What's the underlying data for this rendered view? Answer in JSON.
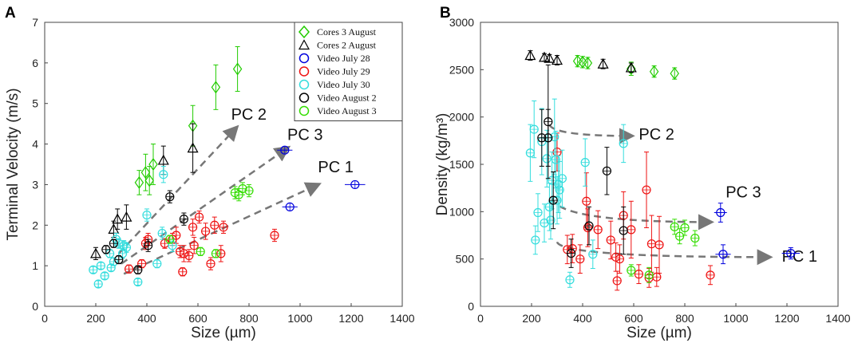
{
  "chart_data": [
    {
      "panel": "A",
      "type": "scatter",
      "xlabel": "Size (µm)",
      "ylabel": "Terminal Velocity (m/s)",
      "xlim": [
        0,
        1400
      ],
      "ylim": [
        0,
        7
      ],
      "xticks": [
        "0",
        "200",
        "400",
        "600",
        "800",
        "1000",
        "1200",
        "1400"
      ],
      "yticks": [
        "0",
        "1",
        "2",
        "3",
        "4",
        "5",
        "6",
        "7"
      ],
      "legend": {
        "position": "top-right",
        "entries": [
          {
            "name": "Cores 3 August",
            "marker": "diamond",
            "color": "#22cc00"
          },
          {
            "name": "Cores 2 August",
            "marker": "triangle",
            "color": "#000000"
          },
          {
            "name": "Video July 28",
            "marker": "circle",
            "color": "#0000dd"
          },
          {
            "name": "Video July 29",
            "marker": "circle",
            "color": "#ee1111"
          },
          {
            "name": "Video July 30",
            "marker": "circle",
            "color": "#33dddd"
          },
          {
            "name": "Video August 2",
            "marker": "circle",
            "color": "#000000"
          },
          {
            "name": "Video August 3",
            "marker": "circle",
            "color": "#33dd00"
          }
        ]
      },
      "arrows": [
        {
          "label": "PC 2",
          "from": [
            290,
            1.3
          ],
          "to": [
            750,
            4.4
          ],
          "label_at": [
            730,
            4.6
          ]
        },
        {
          "label": "PC 3",
          "from": [
            300,
            1.05
          ],
          "to": [
            950,
            3.9
          ],
          "label_at": [
            950,
            4.1
          ]
        },
        {
          "label": "PC 1",
          "from": [
            310,
            0.8
          ],
          "to": [
            1070,
            3.0
          ],
          "label_at": [
            1070,
            3.3
          ]
        }
      ],
      "series": [
        {
          "name": "Cores 3 August",
          "marker": "diamond",
          "color": "#22cc00",
          "points": [
            [
              370,
              3.05,
              0.3
            ],
            [
              395,
              3.3,
              0.45
            ],
            [
              410,
              3.1,
              0.35
            ],
            [
              425,
              3.5,
              0.5
            ],
            [
              580,
              4.45,
              0.5
            ],
            [
              670,
              5.4,
              0.55
            ],
            [
              755,
              5.85,
              0.55
            ]
          ]
        },
        {
          "name": "Cores 2 August",
          "marker": "triangle",
          "color": "#000000",
          "points": [
            [
              200,
              1.3,
              0.15
            ],
            [
              270,
              1.9,
              0.2
            ],
            [
              285,
              2.15,
              0.25
            ],
            [
              320,
              2.2,
              0.3
            ],
            [
              465,
              3.6,
              0.35
            ],
            [
              580,
              3.9,
              0.6
            ]
          ]
        },
        {
          "name": "Video July 28",
          "marker": "circle",
          "color": "#0000dd",
          "points": [
            [
              940,
              3.85,
              0.0,
              30
            ],
            [
              960,
              2.45,
              0.0,
              30
            ],
            [
              1215,
              3.0,
              0.0,
              40
            ]
          ]
        },
        {
          "name": "Video July 29",
          "marker": "circle",
          "color": "#ee1111",
          "points": [
            [
              330,
              0.92,
              0.1
            ],
            [
              380,
              1.05,
              0.1
            ],
            [
              395,
              1.55,
              0.15
            ],
            [
              405,
              1.65,
              0.15
            ],
            [
              470,
              1.55,
              0.12
            ],
            [
              500,
              1.65,
              0.15
            ],
            [
              515,
              1.75,
              0.2
            ],
            [
              530,
              1.35,
              0.15
            ],
            [
              540,
              0.85,
              0.1
            ],
            [
              545,
              1.3,
              0.2
            ],
            [
              565,
              1.25,
              0.15
            ],
            [
              580,
              1.95,
              0.2
            ],
            [
              585,
              1.5,
              0.2
            ],
            [
              605,
              2.2,
              0.15
            ],
            [
              630,
              1.85,
              0.2
            ],
            [
              650,
              1.05,
              0.15
            ],
            [
              665,
              2.0,
              0.2
            ],
            [
              690,
              1.3,
              0.2
            ],
            [
              700,
              1.95,
              0.15
            ],
            [
              900,
              1.75,
              0.15
            ]
          ]
        },
        {
          "name": "Video July 30",
          "marker": "circle",
          "color": "#33dddd",
          "points": [
            [
              190,
              0.9,
              0.08
            ],
            [
              210,
              0.55,
              0.08
            ],
            [
              220,
              1.0,
              0.08
            ],
            [
              235,
              0.75,
              0.08
            ],
            [
              255,
              1.3,
              0.1
            ],
            [
              260,
              0.95,
              0.08
            ],
            [
              270,
              1.1,
              0.1
            ],
            [
              280,
              1.65,
              0.15
            ],
            [
              290,
              1.55,
              0.12
            ],
            [
              305,
              1.3,
              0.12
            ],
            [
              310,
              1.5,
              0.12
            ],
            [
              320,
              1.45,
              0.12
            ],
            [
              365,
              0.6,
              0.08
            ],
            [
              400,
              2.25,
              0.15
            ],
            [
              440,
              1.05,
              0.1
            ],
            [
              460,
              1.8,
              0.15
            ],
            [
              465,
              3.25,
              0.2
            ],
            [
              500,
              1.5,
              0.15
            ]
          ]
        },
        {
          "name": "Video August 2",
          "marker": "circle",
          "color": "#000000",
          "points": [
            [
              240,
              1.4,
              0.1
            ],
            [
              270,
              1.55,
              0.1
            ],
            [
              290,
              1.15,
              0.1
            ],
            [
              365,
              0.9,
              0.1
            ],
            [
              405,
              1.5,
              0.15
            ],
            [
              490,
              2.7,
              0.15
            ],
            [
              545,
              2.15,
              0.15
            ]
          ]
        },
        {
          "name": "Video August 3",
          "marker": "circle",
          "color": "#33dd00",
          "points": [
            [
              490,
              1.65,
              0.1
            ],
            [
              610,
              1.35,
              0.1
            ],
            [
              670,
              1.3,
              0.1
            ],
            [
              745,
              2.8,
              0.15
            ],
            [
              760,
              2.75,
              0.15
            ],
            [
              775,
              2.9,
              0.15
            ],
            [
              800,
              2.85,
              0.15
            ]
          ]
        }
      ]
    },
    {
      "panel": "B",
      "type": "scatter",
      "xlabel": "Size (µm)",
      "ylabel": "Density (kg/m³)",
      "xlim": [
        0,
        1400
      ],
      "ylim": [
        0,
        3000
      ],
      "xticks": [
        "0",
        "200",
        "400",
        "600",
        "800",
        "1000",
        "1200",
        "1400"
      ],
      "yticks": [
        "0",
        "500",
        "1000",
        "1500",
        "2000",
        "2500",
        "3000"
      ],
      "arrows": [
        {
          "label": "PC 2",
          "from": [
            270,
            1920
          ],
          "to": [
            590,
            1800
          ],
          "label_at": [
            620,
            1760
          ]
        },
        {
          "label": "PC 3",
          "from": [
            280,
            1150
          ],
          "to": [
            900,
            890
          ],
          "label_at": [
            960,
            1150
          ]
        },
        {
          "label": "PC 1",
          "from": [
            300,
            680
          ],
          "to": [
            1130,
            520
          ],
          "label_at": [
            1180,
            470
          ]
        }
      ],
      "series": [
        {
          "name": "Cores 3 August",
          "marker": "diamond",
          "color": "#22cc00",
          "points": [
            [
              380,
              2590,
              60
            ],
            [
              400,
              2580,
              60
            ],
            [
              420,
              2570,
              60
            ],
            [
              590,
              2510,
              70
            ],
            [
              680,
              2480,
              60
            ],
            [
              760,
              2460,
              60
            ]
          ]
        },
        {
          "name": "Cores 2 August",
          "marker": "triangle",
          "color": "#000000",
          "points": [
            [
              195,
              2650,
              50
            ],
            [
              250,
              2630,
              40
            ],
            [
              270,
              2620,
              40
            ],
            [
              300,
              2600,
              50
            ],
            [
              480,
              2560,
              50
            ],
            [
              590,
              2520,
              50
            ]
          ]
        },
        {
          "name": "Video July 28",
          "marker": "circle",
          "color": "#0000dd",
          "points": [
            [
              940,
              990,
              100,
              25
            ],
            [
              950,
              550,
              100,
              30
            ],
            [
              1215,
              560,
              60,
              35
            ]
          ]
        },
        {
          "name": "Video July 29",
          "marker": "circle",
          "color": "#ee1111",
          "points": [
            [
              300,
              1630,
              200
            ],
            [
              340,
              600,
              150
            ],
            [
              360,
              610,
              150
            ],
            [
              390,
              500,
              150
            ],
            [
              415,
              1110,
              300
            ],
            [
              420,
              830,
              200
            ],
            [
              460,
              810,
              200
            ],
            [
              510,
              700,
              200
            ],
            [
              530,
              520,
              150
            ],
            [
              535,
              270,
              100
            ],
            [
              545,
              500,
              150
            ],
            [
              560,
              960,
              250
            ],
            [
              590,
              810,
              300
            ],
            [
              620,
              340,
              100
            ],
            [
              650,
              1230,
              400
            ],
            [
              660,
              300,
              100
            ],
            [
              670,
              660,
              300
            ],
            [
              690,
              310,
              100
            ],
            [
              700,
              650,
              300
            ],
            [
              900,
              330,
              100
            ]
          ]
        },
        {
          "name": "Video July 30",
          "marker": "circle",
          "color": "#33dddd",
          "points": [
            [
              195,
              1620,
              300
            ],
            [
              210,
              1870,
              300
            ],
            [
              215,
              700,
              150
            ],
            [
              225,
              990,
              200
            ],
            [
              240,
              1740,
              350
            ],
            [
              250,
              880,
              200
            ],
            [
              260,
              1560,
              300
            ],
            [
              270,
              1050,
              250
            ],
            [
              275,
              910,
              200
            ],
            [
              280,
              1330,
              300
            ],
            [
              290,
              1790,
              400
            ],
            [
              295,
              1550,
              300
            ],
            [
              300,
              1120,
              250
            ],
            [
              305,
              1290,
              300
            ],
            [
              310,
              1230,
              300
            ],
            [
              320,
              1350,
              300
            ],
            [
              350,
              280,
              80
            ],
            [
              410,
              1520,
              250
            ],
            [
              440,
              550,
              150
            ],
            [
              560,
              1720,
              200
            ]
          ]
        },
        {
          "name": "Video August 2",
          "marker": "circle",
          "color": "#000000",
          "points": [
            [
              240,
              1780,
              300
            ],
            [
              265,
              1780,
              300
            ],
            [
              265,
              1950,
              600
            ],
            [
              285,
              1120,
              300
            ],
            [
              355,
              560,
              150
            ],
            [
              425,
              850,
              200
            ],
            [
              495,
              1430,
              250
            ],
            [
              560,
              800,
              250
            ]
          ]
        },
        {
          "name": "Video August 3",
          "marker": "circle",
          "color": "#33dd00",
          "points": [
            [
              590,
              380,
              60
            ],
            [
              660,
              330,
              80
            ],
            [
              760,
              840,
              80
            ],
            [
              780,
              740,
              80
            ],
            [
              800,
              830,
              80
            ],
            [
              840,
              720,
              80
            ]
          ]
        }
      ]
    }
  ]
}
